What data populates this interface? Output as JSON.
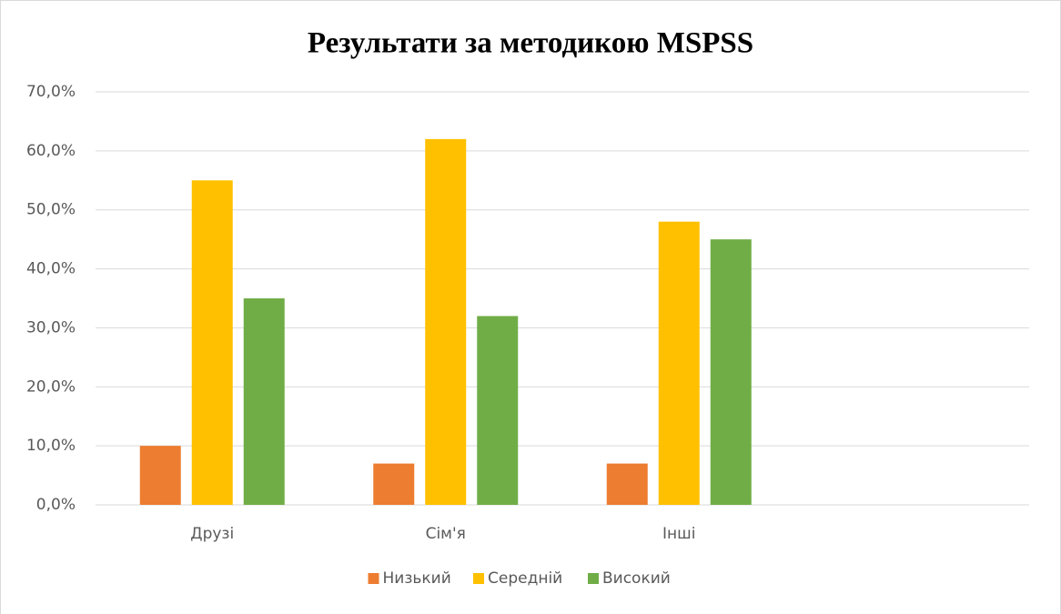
{
  "chart_data": {
    "type": "bar",
    "title": "Результати за методикою MSPSS",
    "categories": [
      "Друзі",
      "Сім'я",
      "Інші",
      null
    ],
    "series": [
      {
        "name": "Низький",
        "color": "#ed7d31",
        "values": [
          10,
          7,
          7,
          null
        ]
      },
      {
        "name": "Середній",
        "color": "#ffc000",
        "values": [
          55,
          62,
          48,
          null
        ]
      },
      {
        "name": "Високий",
        "color": "#70ad47",
        "values": [
          35,
          32,
          45,
          null
        ]
      }
    ],
    "ylim": [
      0,
      70
    ],
    "yticks": [
      {
        "value": 0,
        "label": "0,0%"
      },
      {
        "value": 10,
        "label": "10,0%"
      },
      {
        "value": 20,
        "label": "20,0%"
      },
      {
        "value": 30,
        "label": "30,0%"
      },
      {
        "value": 40,
        "label": "40,0%"
      },
      {
        "value": 50,
        "label": "50,0%"
      },
      {
        "value": 60,
        "label": "60,0%"
      },
      {
        "value": 70,
        "label": "70,0%"
      }
    ],
    "grid": true,
    "legend": "bottom"
  }
}
